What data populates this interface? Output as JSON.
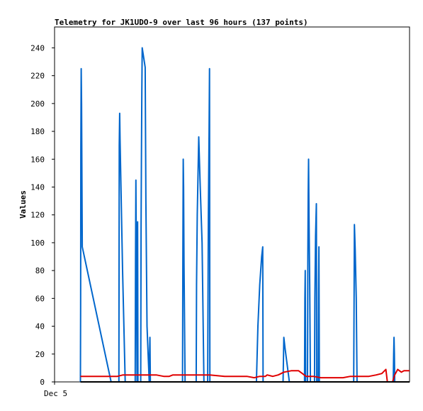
{
  "chart_data": {
    "type": "line",
    "title": "Telemetry for JK1UDO-9 over last 96 hours (137 points)",
    "xlabel": "",
    "ylabel": "Values",
    "x_tick_labels": [
      "Dec 5"
    ],
    "xlim": [
      0,
      96
    ],
    "ylim": [
      0,
      255
    ],
    "y_ticks": [
      0,
      20,
      40,
      60,
      80,
      100,
      120,
      140,
      160,
      180,
      200,
      220,
      240
    ],
    "grid": false,
    "legend": "none",
    "series": [
      {
        "color": "#0066cc",
        "points": [
          [
            7.0,
            0
          ],
          [
            7.05,
            55
          ],
          [
            7.1,
            168
          ],
          [
            7.2,
            225
          ],
          [
            7.3,
            200
          ],
          [
            7.5,
            97
          ],
          [
            15.3,
            0
          ],
          [
            17.4,
            0
          ],
          [
            17.5,
            170
          ],
          [
            17.6,
            193
          ],
          [
            17.7,
            175
          ],
          [
            18.4,
            80
          ],
          [
            19.1,
            0
          ],
          [
            21.8,
            0
          ],
          [
            21.9,
            90
          ],
          [
            22.0,
            145
          ],
          [
            22.1,
            100
          ],
          [
            22.2,
            50
          ],
          [
            22.3,
            0
          ],
          [
            22.35,
            70
          ],
          [
            22.45,
            115
          ],
          [
            22.55,
            0
          ],
          [
            23.3,
            0
          ],
          [
            23.4,
            110
          ],
          [
            23.5,
            160
          ],
          [
            23.6,
            210
          ],
          [
            23.7,
            240
          ],
          [
            24.5,
            226
          ],
          [
            24.7,
            130
          ],
          [
            25.0,
            40
          ],
          [
            25.6,
            0
          ],
          [
            25.7,
            20
          ],
          [
            25.8,
            32
          ],
          [
            25.9,
            0
          ],
          [
            26.0,
            0
          ],
          [
            34.6,
            0
          ],
          [
            34.7,
            90
          ],
          [
            34.8,
            160
          ],
          [
            34.9,
            140
          ],
          [
            35.0,
            85
          ],
          [
            35.3,
            0
          ],
          [
            38.3,
            0
          ],
          [
            38.4,
            70
          ],
          [
            38.6,
            120
          ],
          [
            39.0,
            176
          ],
          [
            39.4,
            140
          ],
          [
            39.9,
            100
          ],
          [
            40.4,
            0
          ],
          [
            41.4,
            0
          ],
          [
            41.6,
            120
          ],
          [
            41.8,
            180
          ],
          [
            41.9,
            225
          ],
          [
            42.0,
            0
          ],
          [
            54.6,
            0
          ],
          [
            55.0,
            40
          ],
          [
            55.5,
            70
          ],
          [
            56.0,
            90
          ],
          [
            56.3,
            97
          ],
          [
            56.4,
            0
          ],
          [
            61.8,
            0
          ],
          [
            62.0,
            32
          ],
          [
            62.3,
            25
          ],
          [
            63.5,
            0
          ],
          [
            67.6,
            0
          ],
          [
            67.7,
            60
          ],
          [
            67.8,
            80
          ],
          [
            67.9,
            0
          ],
          [
            68.4,
            0
          ],
          [
            68.5,
            90
          ],
          [
            68.6,
            135
          ],
          [
            68.7,
            160
          ],
          [
            68.8,
            120
          ],
          [
            69.0,
            70
          ],
          [
            69.2,
            0
          ],
          [
            70.3,
            0
          ],
          [
            70.4,
            60
          ],
          [
            70.6,
            105
          ],
          [
            70.8,
            128
          ],
          [
            70.9,
            0
          ],
          [
            71.3,
            0
          ],
          [
            71.4,
            65
          ],
          [
            71.5,
            97
          ],
          [
            71.6,
            0
          ],
          [
            80.9,
            0
          ],
          [
            81.0,
            55
          ],
          [
            81.1,
            113
          ],
          [
            81.3,
            95
          ],
          [
            81.6,
            60
          ],
          [
            81.8,
            0
          ],
          [
            91.6,
            0
          ],
          [
            91.7,
            20
          ],
          [
            91.8,
            32
          ],
          [
            91.9,
            20
          ],
          [
            92.0,
            0
          ]
        ]
      },
      {
        "color": "#e00000",
        "points": [
          [
            7.0,
            4
          ],
          [
            8.0,
            4
          ],
          [
            11.0,
            4
          ],
          [
            15.0,
            4
          ],
          [
            17.0,
            4
          ],
          [
            18.5,
            5
          ],
          [
            21.0,
            5
          ],
          [
            24.0,
            5
          ],
          [
            27.5,
            5
          ],
          [
            29.5,
            4
          ],
          [
            31.0,
            4
          ],
          [
            32.0,
            5
          ],
          [
            34.0,
            5
          ],
          [
            38.0,
            5
          ],
          [
            42.0,
            5
          ],
          [
            46.0,
            4
          ],
          [
            52.0,
            4
          ],
          [
            54.0,
            3
          ],
          [
            55.5,
            4
          ],
          [
            57.0,
            4
          ],
          [
            57.5,
            5
          ],
          [
            59.0,
            4
          ],
          [
            60.5,
            5
          ],
          [
            62.0,
            7
          ],
          [
            64.0,
            8
          ],
          [
            66.0,
            8
          ],
          [
            67.0,
            6
          ],
          [
            68.0,
            4
          ],
          [
            70.0,
            4
          ],
          [
            72.0,
            3
          ],
          [
            75.0,
            3
          ],
          [
            78.0,
            3
          ],
          [
            80.0,
            4
          ],
          [
            82.0,
            4
          ],
          [
            85.0,
            4
          ],
          [
            87.0,
            5
          ],
          [
            88.5,
            6
          ],
          [
            89.6,
            9
          ],
          [
            90.0,
            0
          ],
          [
            91.4,
            0
          ],
          [
            92.0,
            5
          ],
          [
            92.8,
            9
          ],
          [
            93.8,
            7
          ],
          [
            94.5,
            8
          ],
          [
            96.0,
            8
          ]
        ]
      },
      {
        "color": "#000000",
        "points": [
          [
            7.0,
            0
          ],
          [
            96.0,
            0
          ]
        ]
      }
    ]
  }
}
